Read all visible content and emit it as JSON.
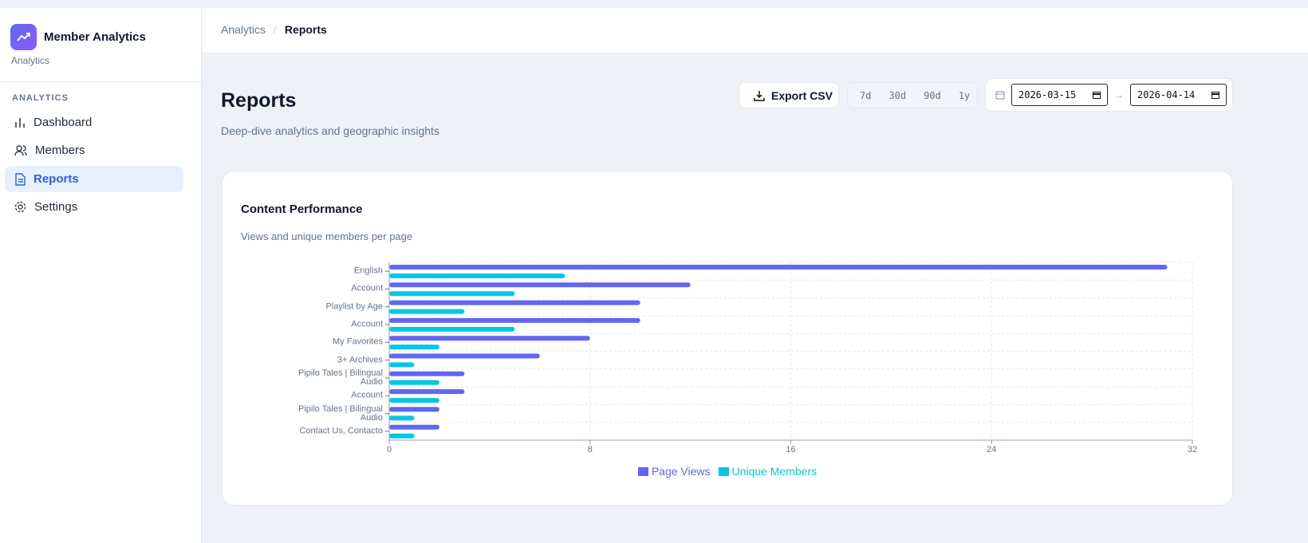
{
  "sidebar": {
    "brand": "Member Analytics",
    "brand_sub": "Analytics",
    "section": "ANALYTICS",
    "nav": [
      "Dashboard",
      "Members",
      "Reports",
      "Settings"
    ]
  },
  "breadcrumb": [
    "Analytics",
    "Reports"
  ],
  "header": {
    "title": "Reports",
    "subtitle": "Deep-dive analytics and geographic insights"
  },
  "toolbar": {
    "export": "Export CSV",
    "ranges": [
      "7d",
      "30d",
      "90d",
      "1y"
    ],
    "dates": [
      "2026-03-15",
      "2026-04-14"
    ]
  },
  "card": {
    "title": "Content Performance",
    "subtitle": "Views and unique members per page"
  },
  "chart_data": {
    "type": "hbar",
    "categories": [
      "English",
      "Account",
      "Playlist by Age",
      "Account",
      "My Favorites",
      "3+ Archives",
      "Pipilo Tales | Bilingual Audio",
      "Account",
      "Pipilo Tales | Bilingual Audio",
      "Contact Us, Contacto"
    ],
    "series": [
      {
        "name": "Page Views",
        "color": "#6366f1",
        "values": [
          31,
          12,
          10,
          10,
          8,
          6,
          3,
          3,
          2,
          2
        ]
      },
      {
        "name": "Unique Members",
        "color": "#06c7e2",
        "values": [
          7,
          5,
          3,
          5,
          2,
          1,
          2,
          2,
          1,
          1
        ]
      }
    ],
    "xlim": [
      0,
      32
    ],
    "xticks": [
      0,
      8,
      16,
      24,
      32
    ],
    "grid": true
  }
}
